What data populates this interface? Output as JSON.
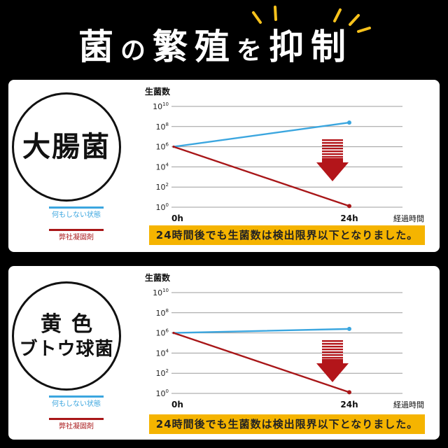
{
  "title": {
    "parts": [
      "菌",
      "の",
      "繁殖",
      "を",
      "抑制"
    ]
  },
  "icons": {
    "title_accent": "sparkle-icon",
    "decrease": "down-arrow-icon"
  },
  "colors": {
    "background": "#000000",
    "panel": "#ffffff",
    "banner": "#f5b400",
    "sparkle": "#f7c21c",
    "grid": "#9c9c9c",
    "arrow": "#b3151a"
  },
  "panels": [
    {
      "organism": [
        "大腸菌"
      ],
      "banner": "24時間後でも生菌数は検出限界以下となりました。"
    },
    {
      "organism": [
        "黄色",
        "ブトウ球菌"
      ],
      "banner": "24時間後でも生菌数は検出限界以下となりました。"
    }
  ],
  "chart_data": [
    {
      "type": "line",
      "ylabel": "生菌数",
      "xlabel": "経過時間",
      "categories": [
        "0h",
        "24h"
      ],
      "y_scale": "log",
      "ylim": [
        1,
        10000000000
      ],
      "yticks": [
        10000000000,
        100000000,
        1000000,
        10000,
        100,
        1
      ],
      "ytick_base": "10",
      "ytick_exponents": [
        "10",
        "8",
        "6",
        "4",
        "2",
        "0"
      ],
      "grid": true,
      "legend_position": "bottom-left",
      "series": [
        {
          "name": "何もしない状態",
          "color": "#3ba6df",
          "values": [
            1000000,
            250000000
          ]
        },
        {
          "name": "弊社凝固剤",
          "color": "#a81618",
          "values": [
            1000000,
            1.3
          ]
        }
      ]
    },
    {
      "type": "line",
      "ylabel": "生菌数",
      "xlabel": "経過時間",
      "categories": [
        "0h",
        "24h"
      ],
      "y_scale": "log",
      "ylim": [
        1,
        10000000000
      ],
      "yticks": [
        10000000000,
        100000000,
        1000000,
        10000,
        100,
        1
      ],
      "ytick_base": "10",
      "ytick_exponents": [
        "10",
        "8",
        "6",
        "4",
        "2",
        "0"
      ],
      "grid": true,
      "legend_position": "bottom-left",
      "series": [
        {
          "name": "何もしない状態",
          "color": "#3ba6df",
          "values": [
            1000000,
            2500000
          ]
        },
        {
          "name": "弊社凝固剤",
          "color": "#a81618",
          "values": [
            1000000,
            1.3
          ]
        }
      ]
    }
  ]
}
